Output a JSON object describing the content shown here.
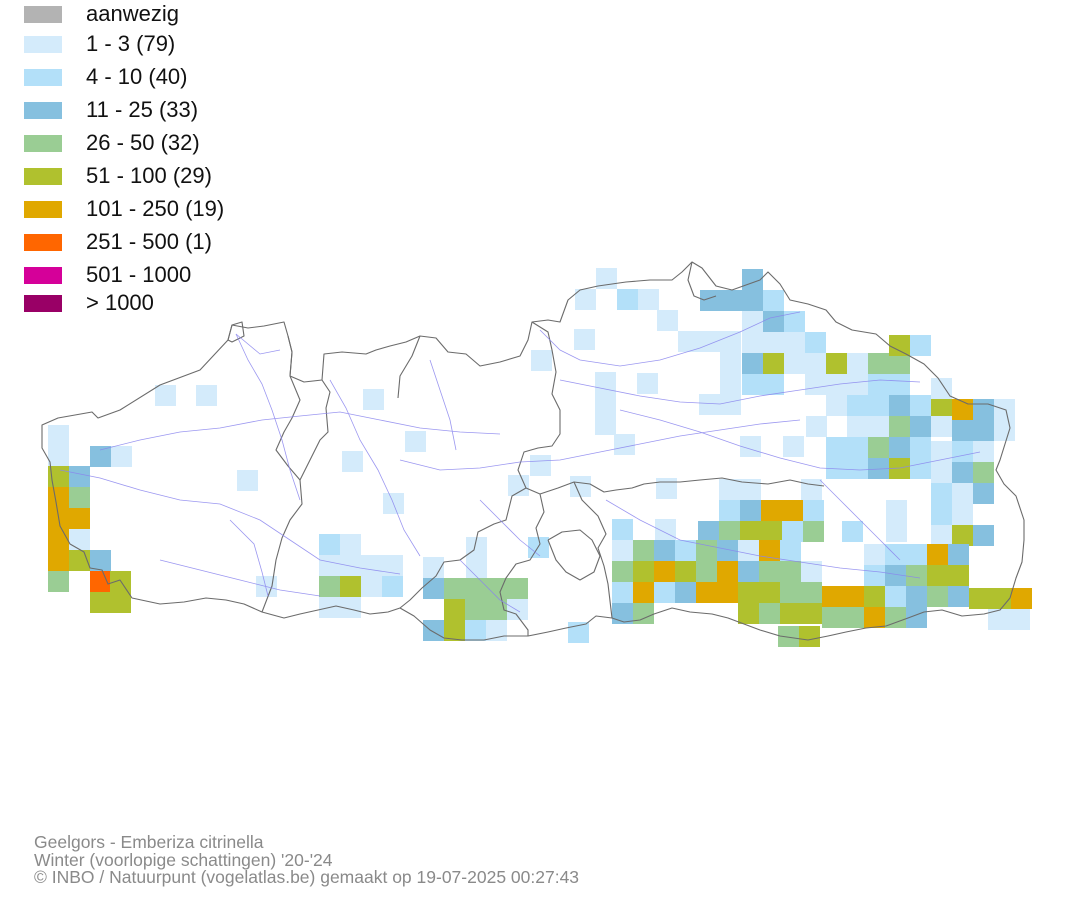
{
  "legend": {
    "items": [
      {
        "label": "aanwezig",
        "color": "#b3b3b3"
      },
      {
        "label": "1 - 3 (79)",
        "color": "#d4ebfb"
      },
      {
        "label": "4 - 10 (40)",
        "color": "#b3e0f9"
      },
      {
        "label": "11 - 25 (33)",
        "color": "#86c0df"
      },
      {
        "label": "26 - 50 (32)",
        "color": "#9acd94"
      },
      {
        "label": "51 - 100 (29)",
        "color": "#b0c12e"
      },
      {
        "label": "101 - 250 (19)",
        "color": "#e0a800"
      },
      {
        "label": "251 - 500 (1)",
        "color": "#ff6600"
      },
      {
        "label": "501 - 1000",
        "color": "#d50099"
      },
      {
        "label": "> 1000",
        "color": "#990066"
      }
    ]
  },
  "credits": {
    "species": "Geelgors - Emberiza citrinella",
    "season": "Winter (voorlopige schattingen) '20-'24",
    "copyright": "© INBO / Natuurpunt (vogelatlas.be) gemaakt op 19-07-2025 00:27:43"
  }
}
